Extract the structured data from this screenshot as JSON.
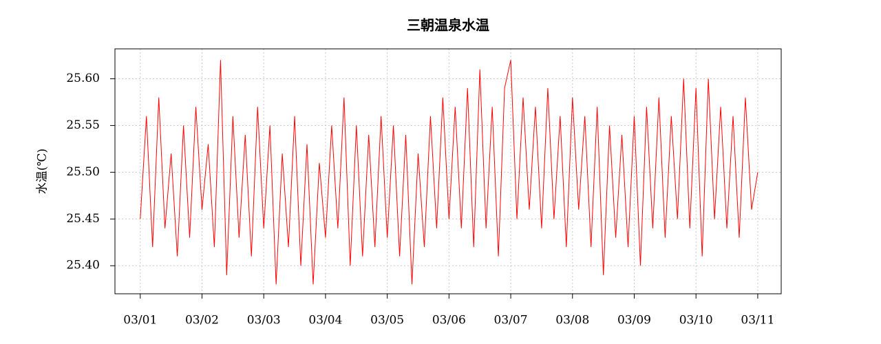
{
  "chart_data": {
    "type": "line",
    "title": "三朝温泉水温",
    "y_label": "水温(℃)",
    "x": [
      0,
      0.1,
      0.2,
      0.3,
      0.4,
      0.5,
      0.6,
      0.7,
      0.8,
      0.9,
      1,
      1.1,
      1.2,
      1.3,
      1.4,
      1.5,
      1.6,
      1.7,
      1.8,
      1.9,
      2,
      2.1,
      2.2,
      2.3,
      2.4,
      2.5,
      2.6,
      2.7,
      2.8,
      2.9,
      3,
      3.1,
      3.2,
      3.3,
      3.4,
      3.5,
      3.6,
      3.7,
      3.8,
      3.9,
      4,
      4.1,
      4.2,
      4.3,
      4.4,
      4.5,
      4.6,
      4.7,
      4.8,
      4.9,
      5,
      5.1,
      5.2,
      5.3,
      5.4,
      5.5,
      5.6,
      5.7,
      5.8,
      5.9,
      6,
      6.1,
      6.2,
      6.3,
      6.4,
      6.5,
      6.6,
      6.7,
      6.8,
      6.9,
      7,
      7.1,
      7.2,
      7.3,
      7.4,
      7.5,
      7.6,
      7.7,
      7.8,
      7.9,
      8,
      8.1,
      8.2,
      8.3,
      8.4,
      8.5,
      8.6,
      8.7,
      8.8,
      8.9,
      9,
      9.1,
      9.2,
      9.3,
      9.4,
      9.5,
      9.6,
      9.7,
      9.8,
      9.9,
      10
    ],
    "series": [
      {
        "name": "水温",
        "color": "#ff0000",
        "values": [
          25.45,
          25.56,
          25.42,
          25.58,
          25.44,
          25.52,
          25.41,
          25.55,
          25.43,
          25.57,
          25.46,
          25.53,
          25.42,
          25.62,
          25.39,
          25.56,
          25.43,
          25.54,
          25.41,
          25.57,
          25.44,
          25.55,
          25.38,
          25.52,
          25.42,
          25.56,
          25.4,
          25.53,
          25.38,
          25.51,
          25.43,
          25.55,
          25.44,
          25.58,
          25.4,
          25.55,
          25.41,
          25.54,
          25.42,
          25.56,
          25.43,
          25.55,
          25.41,
          25.54,
          25.38,
          25.52,
          25.42,
          25.56,
          25.44,
          25.58,
          25.45,
          25.57,
          25.44,
          25.59,
          25.42,
          25.61,
          25.44,
          25.57,
          25.41,
          25.59,
          25.62,
          25.45,
          25.58,
          25.46,
          25.57,
          25.44,
          25.59,
          25.45,
          25.56,
          25.42,
          25.58,
          25.46,
          25.56,
          25.42,
          25.57,
          25.39,
          25.55,
          25.43,
          25.54,
          25.42,
          25.56,
          25.4,
          25.57,
          25.44,
          25.58,
          25.43,
          25.56,
          25.45,
          25.6,
          25.44,
          25.59,
          25.41,
          25.6,
          25.45,
          25.57,
          25.44,
          25.56,
          25.43,
          25.58,
          25.46,
          25.5
        ]
      }
    ],
    "xlim": [
      -0.41,
      10.38
    ],
    "xticks": [
      {
        "value": 0,
        "label": "03/01"
      },
      {
        "value": 1,
        "label": "03/02"
      },
      {
        "value": 2,
        "label": "03/03"
      },
      {
        "value": 3,
        "label": "03/04"
      },
      {
        "value": 4,
        "label": "03/05"
      },
      {
        "value": 5,
        "label": "03/06"
      },
      {
        "value": 6,
        "label": "03/07"
      },
      {
        "value": 7,
        "label": "03/08"
      },
      {
        "value": 8,
        "label": "03/09"
      },
      {
        "value": 9,
        "label": "03/10"
      },
      {
        "value": 10,
        "label": "03/11"
      }
    ],
    "ylim": [
      25.37,
      25.632
    ],
    "yticks": [
      {
        "value": 25.4,
        "label": "25.40"
      },
      25.45,
      {
        "value": 25.5,
        "label": "25.50"
      },
      25.55,
      {
        "value": 25.6,
        "label": "25.60"
      }
    ],
    "grid": true
  }
}
